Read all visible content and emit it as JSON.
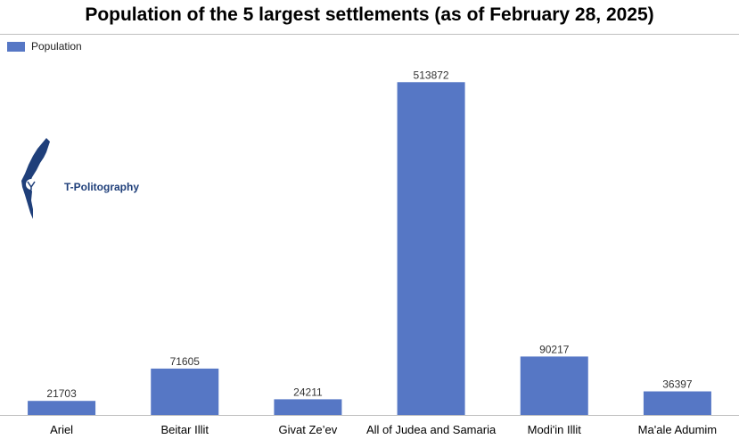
{
  "chart_data": {
    "type": "bar",
    "title": "Population of the 5 largest settlements (as of February 28, 2025)",
    "categories": [
      "Ariel",
      "Beitar Illit",
      "Givat Ze’ev",
      "All of Judea and Samaria",
      "Modi'in Illit",
      "Ma'ale Adumim"
    ],
    "series": [
      {
        "name": "Population",
        "values": [
          21703,
          71605,
          24211,
          513872,
          90217,
          36397
        ]
      }
    ],
    "ylim": [
      0,
      550000
    ],
    "grid": false,
    "legend": "top-left",
    "bar_color": "#5677c5"
  },
  "logo": {
    "text": "T-Politography",
    "color": "#1f3f7a"
  }
}
